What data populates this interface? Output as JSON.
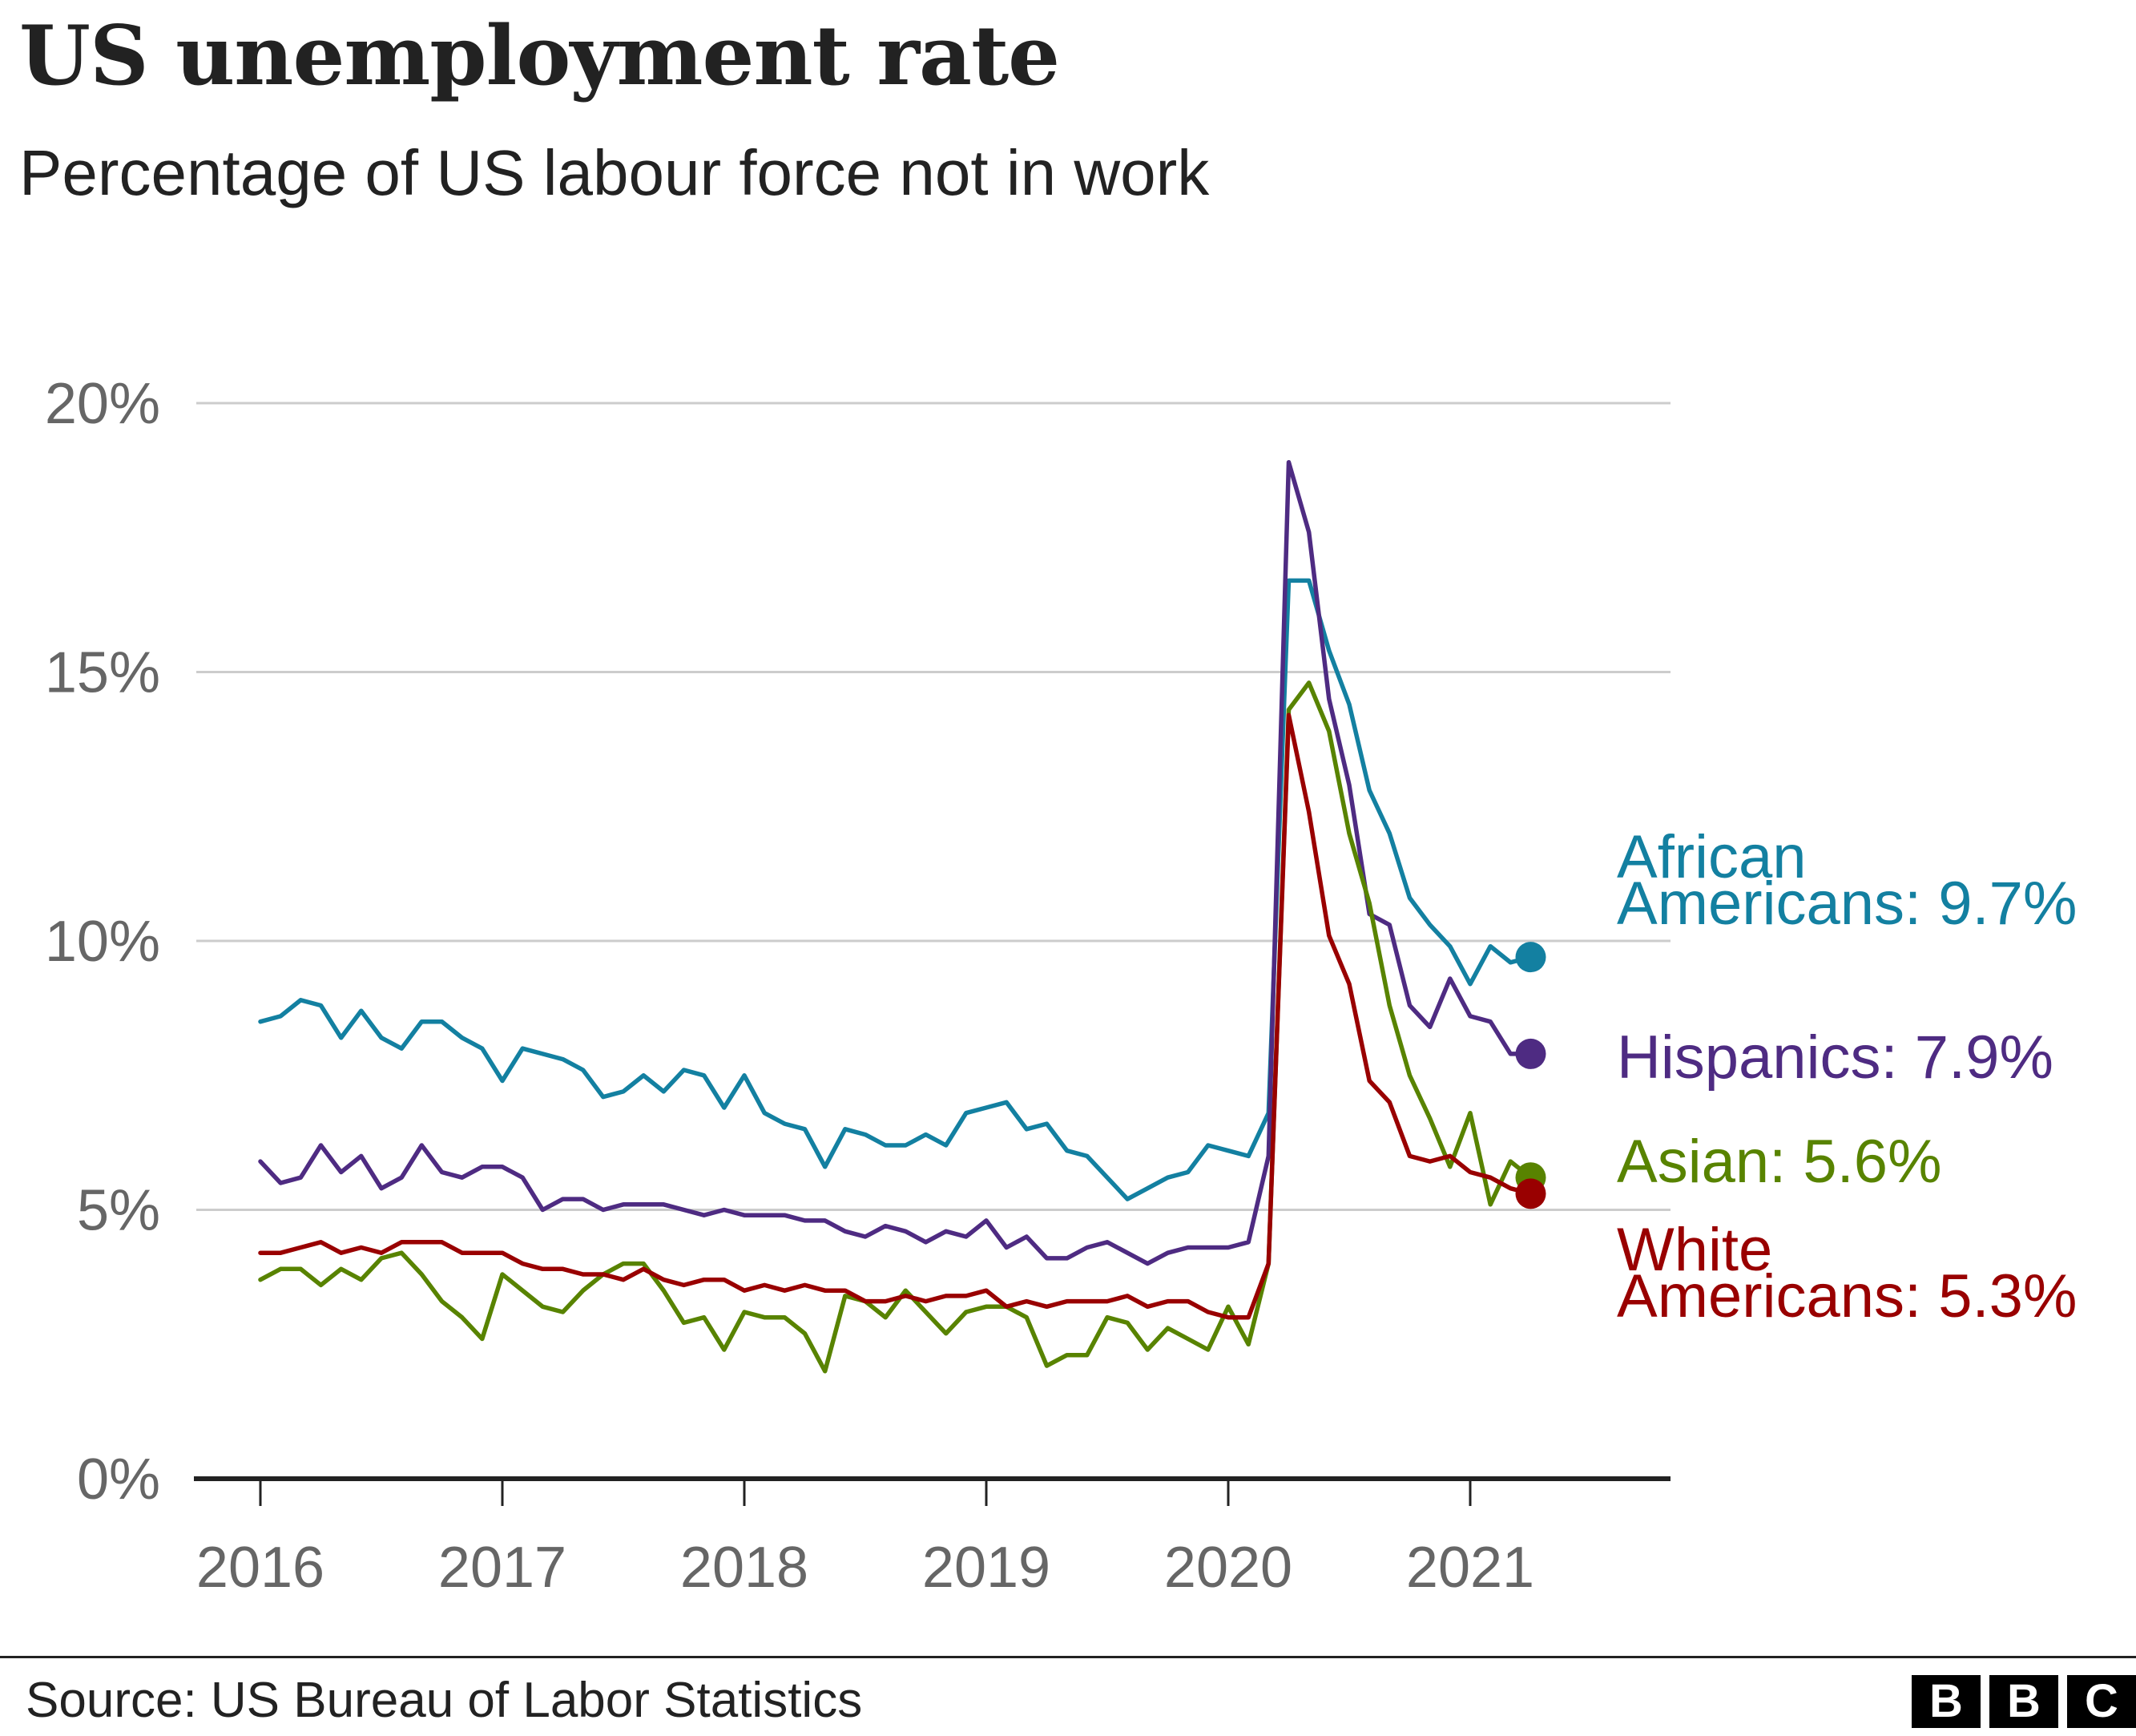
{
  "header": {
    "title": "US unemployment rate",
    "subtitle": "Percentage of US labour force not in work"
  },
  "footer": {
    "source": "Source: US Bureau of Labor Statistics",
    "logo": [
      "B",
      "B",
      "C"
    ]
  },
  "chart_data": {
    "type": "line",
    "x_unit": "year (monthly data, Jan 2016 - Apr 2021)",
    "xlim": [
      2016,
      2021.25
    ],
    "ylim": [
      0,
      20
    ],
    "x_ticks": [
      {
        "value": 2016,
        "label": "2016"
      },
      {
        "value": 2017,
        "label": "2017"
      },
      {
        "value": 2018,
        "label": "2018"
      },
      {
        "value": 2019,
        "label": "2019"
      },
      {
        "value": 2020,
        "label": "2020"
      },
      {
        "value": 2021,
        "label": "2021"
      }
    ],
    "y_ticks": [
      {
        "value": 0,
        "label": "0%"
      },
      {
        "value": 5,
        "label": "5%"
      },
      {
        "value": 10,
        "label": "10%"
      },
      {
        "value": 15,
        "label": "15%"
      },
      {
        "value": 20,
        "label": "20%"
      }
    ],
    "grid": "horizontal",
    "legend": "direct labels at right end of lines",
    "series": [
      {
        "label_lines": [
          "African",
          "Americans: 9.7%"
        ],
        "color": "#1380A1",
        "values": [
          8.5,
          8.6,
          8.9,
          8.8,
          8.2,
          8.7,
          8.2,
          8.0,
          8.5,
          8.5,
          8.2,
          8.0,
          7.4,
          8.0,
          7.9,
          7.8,
          7.6,
          7.1,
          7.2,
          7.5,
          7.2,
          7.6,
          7.5,
          6.9,
          7.5,
          6.8,
          6.6,
          6.5,
          5.8,
          6.5,
          6.4,
          6.2,
          6.2,
          6.4,
          6.2,
          6.8,
          6.9,
          7.0,
          6.5,
          6.6,
          6.1,
          6.0,
          5.6,
          5.2,
          5.4,
          5.6,
          5.7,
          6.2,
          6.1,
          6.0,
          6.8,
          16.7,
          16.7,
          15.4,
          14.4,
          12.8,
          12.0,
          10.8,
          10.3,
          9.9,
          9.2,
          9.9,
          9.6,
          9.7
        ]
      },
      {
        "label_lines": [
          "Hispanics: 7.9%"
        ],
        "color": "#4E2B82",
        "values": [
          5.9,
          5.5,
          5.6,
          6.2,
          5.7,
          6.0,
          5.4,
          5.6,
          6.2,
          5.7,
          5.6,
          5.8,
          5.8,
          5.6,
          5.0,
          5.2,
          5.2,
          5.0,
          5.1,
          5.1,
          5.1,
          5.0,
          4.9,
          5.0,
          4.9,
          4.9,
          4.9,
          4.8,
          4.8,
          4.6,
          4.5,
          4.7,
          4.6,
          4.4,
          4.6,
          4.5,
          4.8,
          4.3,
          4.5,
          4.1,
          4.1,
          4.3,
          4.4,
          4.2,
          4.0,
          4.2,
          4.3,
          4.3,
          4.3,
          4.4,
          6.0,
          18.9,
          17.6,
          14.5,
          12.9,
          10.5,
          10.3,
          8.8,
          8.4,
          9.3,
          8.6,
          8.5,
          7.9,
          7.9
        ]
      },
      {
        "label_lines": [
          "Asian: 5.6%"
        ],
        "color": "#588300",
        "values": [
          3.7,
          3.9,
          3.9,
          3.6,
          3.9,
          3.7,
          4.1,
          4.2,
          3.8,
          3.3,
          3.0,
          2.6,
          3.8,
          3.5,
          3.2,
          3.1,
          3.5,
          3.8,
          4.0,
          4.0,
          3.5,
          2.9,
          3.0,
          2.4,
          3.1,
          3.0,
          3.0,
          2.7,
          2.0,
          3.4,
          3.3,
          3.0,
          3.5,
          3.1,
          2.7,
          3.1,
          3.2,
          3.2,
          3.0,
          2.1,
          2.3,
          2.3,
          3.0,
          2.9,
          2.4,
          2.8,
          2.6,
          2.4,
          3.2,
          2.5,
          4.0,
          14.3,
          14.8,
          13.9,
          12.0,
          10.7,
          8.8,
          7.5,
          6.7,
          5.8,
          6.8,
          5.1,
          5.9,
          5.6
        ]
      },
      {
        "label_lines": [
          "White",
          "Americans: 5.3%"
        ],
        "color": "#990000",
        "values": [
          4.2,
          4.2,
          4.3,
          4.4,
          4.2,
          4.3,
          4.2,
          4.4,
          4.4,
          4.4,
          4.2,
          4.2,
          4.2,
          4.0,
          3.9,
          3.9,
          3.8,
          3.8,
          3.7,
          3.9,
          3.7,
          3.6,
          3.7,
          3.7,
          3.5,
          3.6,
          3.5,
          3.6,
          3.5,
          3.5,
          3.3,
          3.3,
          3.4,
          3.3,
          3.4,
          3.4,
          3.5,
          3.2,
          3.3,
          3.2,
          3.3,
          3.3,
          3.3,
          3.4,
          3.2,
          3.3,
          3.3,
          3.1,
          3.0,
          3.0,
          4.0,
          14.2,
          12.4,
          10.1,
          9.2,
          7.4,
          7.0,
          6.0,
          5.9,
          6.0,
          5.7,
          5.6,
          5.4,
          5.3
        ]
      }
    ]
  }
}
